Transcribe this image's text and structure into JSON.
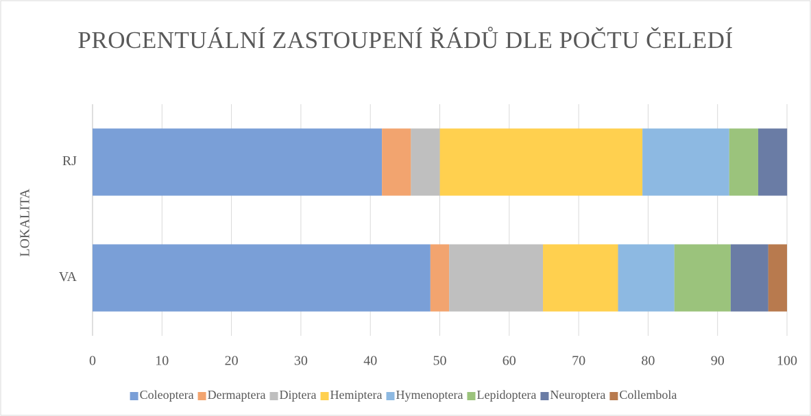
{
  "chart_data": {
    "type": "stacked-bar-horizontal",
    "title": "PROCENTUÁLNÍ ZASTOUPENÍ ŘÁDŮ DLE POČTU ČELEDÍ",
    "y_label": "LOKALITA",
    "categories": [
      "RJ",
      "VA"
    ],
    "series": [
      {
        "name": "Coleoptera",
        "color": "#7a9fd7",
        "values": [
          41.67,
          48.65
        ]
      },
      {
        "name": "Dermaptera",
        "color": "#f2a46f",
        "values": [
          4.17,
          2.7
        ]
      },
      {
        "name": "Diptera",
        "color": "#bfbfbf",
        "values": [
          4.17,
          13.51
        ]
      },
      {
        "name": "Hemiptera",
        "color": "#ffd04f",
        "values": [
          29.17,
          10.81
        ]
      },
      {
        "name": "Hymenoptera",
        "color": "#8db9e2",
        "values": [
          12.5,
          8.11
        ]
      },
      {
        "name": "Lepidoptera",
        "color": "#9bc37c",
        "values": [
          4.17,
          8.11
        ]
      },
      {
        "name": "Neuroptera",
        "color": "#6a7ca5",
        "values": [
          4.17,
          5.41
        ]
      },
      {
        "name": "Collembola",
        "color": "#b87a4e",
        "values": [
          0,
          2.7
        ]
      }
    ],
    "xlim": [
      0,
      100
    ],
    "xticks": [
      0,
      10,
      20,
      30,
      40,
      50,
      60,
      70,
      80,
      90,
      100
    ],
    "grid": true,
    "legend": "bottom"
  }
}
